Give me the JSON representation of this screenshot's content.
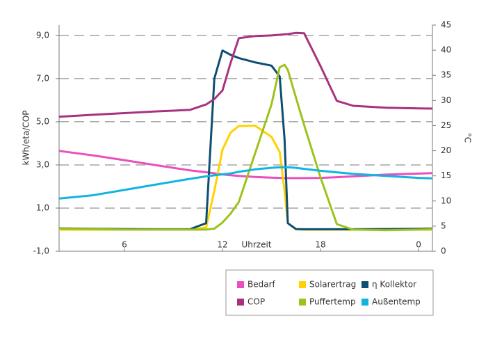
{
  "chart_data": {
    "type": "line",
    "ylabel": "kWh/eta/COP",
    "y2label": "°C",
    "xlabel": "Uhrzeit",
    "x": [
      2,
      4,
      6,
      8,
      10,
      11,
      11.5,
      12,
      12.5,
      13,
      14,
      15,
      15.5,
      15.8,
      16,
      16.5,
      17,
      18,
      19,
      20,
      22,
      24,
      24.85
    ],
    "xlim": [
      2,
      24.85
    ],
    "xticks": [
      6,
      12,
      18,
      {
        "value": 24,
        "label": "0"
      }
    ],
    "ylim": [
      -1,
      9.48
    ],
    "yticks": [
      {
        "value": -1,
        "label": "-1,0"
      },
      {
        "value": 1,
        "label": "1,0"
      },
      {
        "value": 3,
        "label": "3,0"
      },
      {
        "value": 5,
        "label": "5,0"
      },
      {
        "value": 7,
        "label": "7,0"
      },
      {
        "value": 9,
        "label": "9,0"
      }
    ],
    "y2lim": [
      0,
      45
    ],
    "y2ticks": [
      0,
      5,
      10,
      15,
      20,
      25,
      30,
      35,
      40,
      45
    ],
    "grid": true,
    "legend": "bottom-right",
    "series": [
      {
        "name": "Bedarf",
        "color": "#e94fbf",
        "values": [
          3.65,
          3.45,
          3.22,
          2.98,
          2.75,
          2.66,
          2.61,
          2.56,
          2.52,
          2.49,
          2.44,
          2.41,
          2.4,
          2.39,
          2.39,
          2.39,
          2.39,
          2.4,
          2.43,
          2.47,
          2.55,
          2.6,
          2.62
        ]
      },
      {
        "name": "Solarertrag",
        "color": "#ffd200",
        "values": [
          0,
          0,
          0,
          0,
          0,
          0.1,
          1.8,
          3.7,
          4.5,
          4.8,
          4.82,
          4.3,
          3.6,
          1.8,
          0.3,
          0.02,
          0,
          0,
          0,
          0,
          0,
          0,
          0
        ]
      },
      {
        "name": "η Kollektor",
        "color": "#0e4e72",
        "values": [
          0.06,
          0.04,
          0.03,
          0.02,
          0.02,
          0.3,
          7.0,
          8.3,
          8.1,
          7.95,
          7.75,
          7.6,
          7.1,
          4.2,
          0.3,
          0.03,
          0.02,
          0.02,
          0.02,
          0.02,
          0.03,
          0.04,
          0.05
        ]
      },
      {
        "name": "COP",
        "color": "#a8327f",
        "values": [
          5.23,
          5.32,
          5.4,
          5.48,
          5.55,
          5.8,
          6.05,
          6.45,
          7.74,
          8.87,
          8.97,
          9.0,
          9.03,
          9.05,
          9.06,
          9.12,
          9.1,
          7.58,
          5.97,
          5.74,
          5.65,
          5.62,
          5.61
        ]
      },
      {
        "name": "Puffertemp",
        "color": "#9dc31b",
        "axis": "y2",
        "values": [
          4.5,
          4.4,
          4.3,
          4.3,
          4.3,
          4.3,
          4.5,
          5.7,
          7.5,
          9.8,
          19.5,
          29.2,
          36.6,
          37.1,
          36.1,
          30.5,
          25.1,
          14.7,
          5.4,
          4.3,
          4.2,
          4.3,
          4.4
        ]
      },
      {
        "name": "Außentemp",
        "color": "#12b4de",
        "axis": "y2",
        "values": [
          10.5,
          11.1,
          12.2,
          13.3,
          14.4,
          14.9,
          15.1,
          15.3,
          15.5,
          15.8,
          16.3,
          16.6,
          16.7,
          16.7,
          16.7,
          16.6,
          16.4,
          16.0,
          15.7,
          15.4,
          15.0,
          14.6,
          14.5
        ]
      }
    ]
  }
}
